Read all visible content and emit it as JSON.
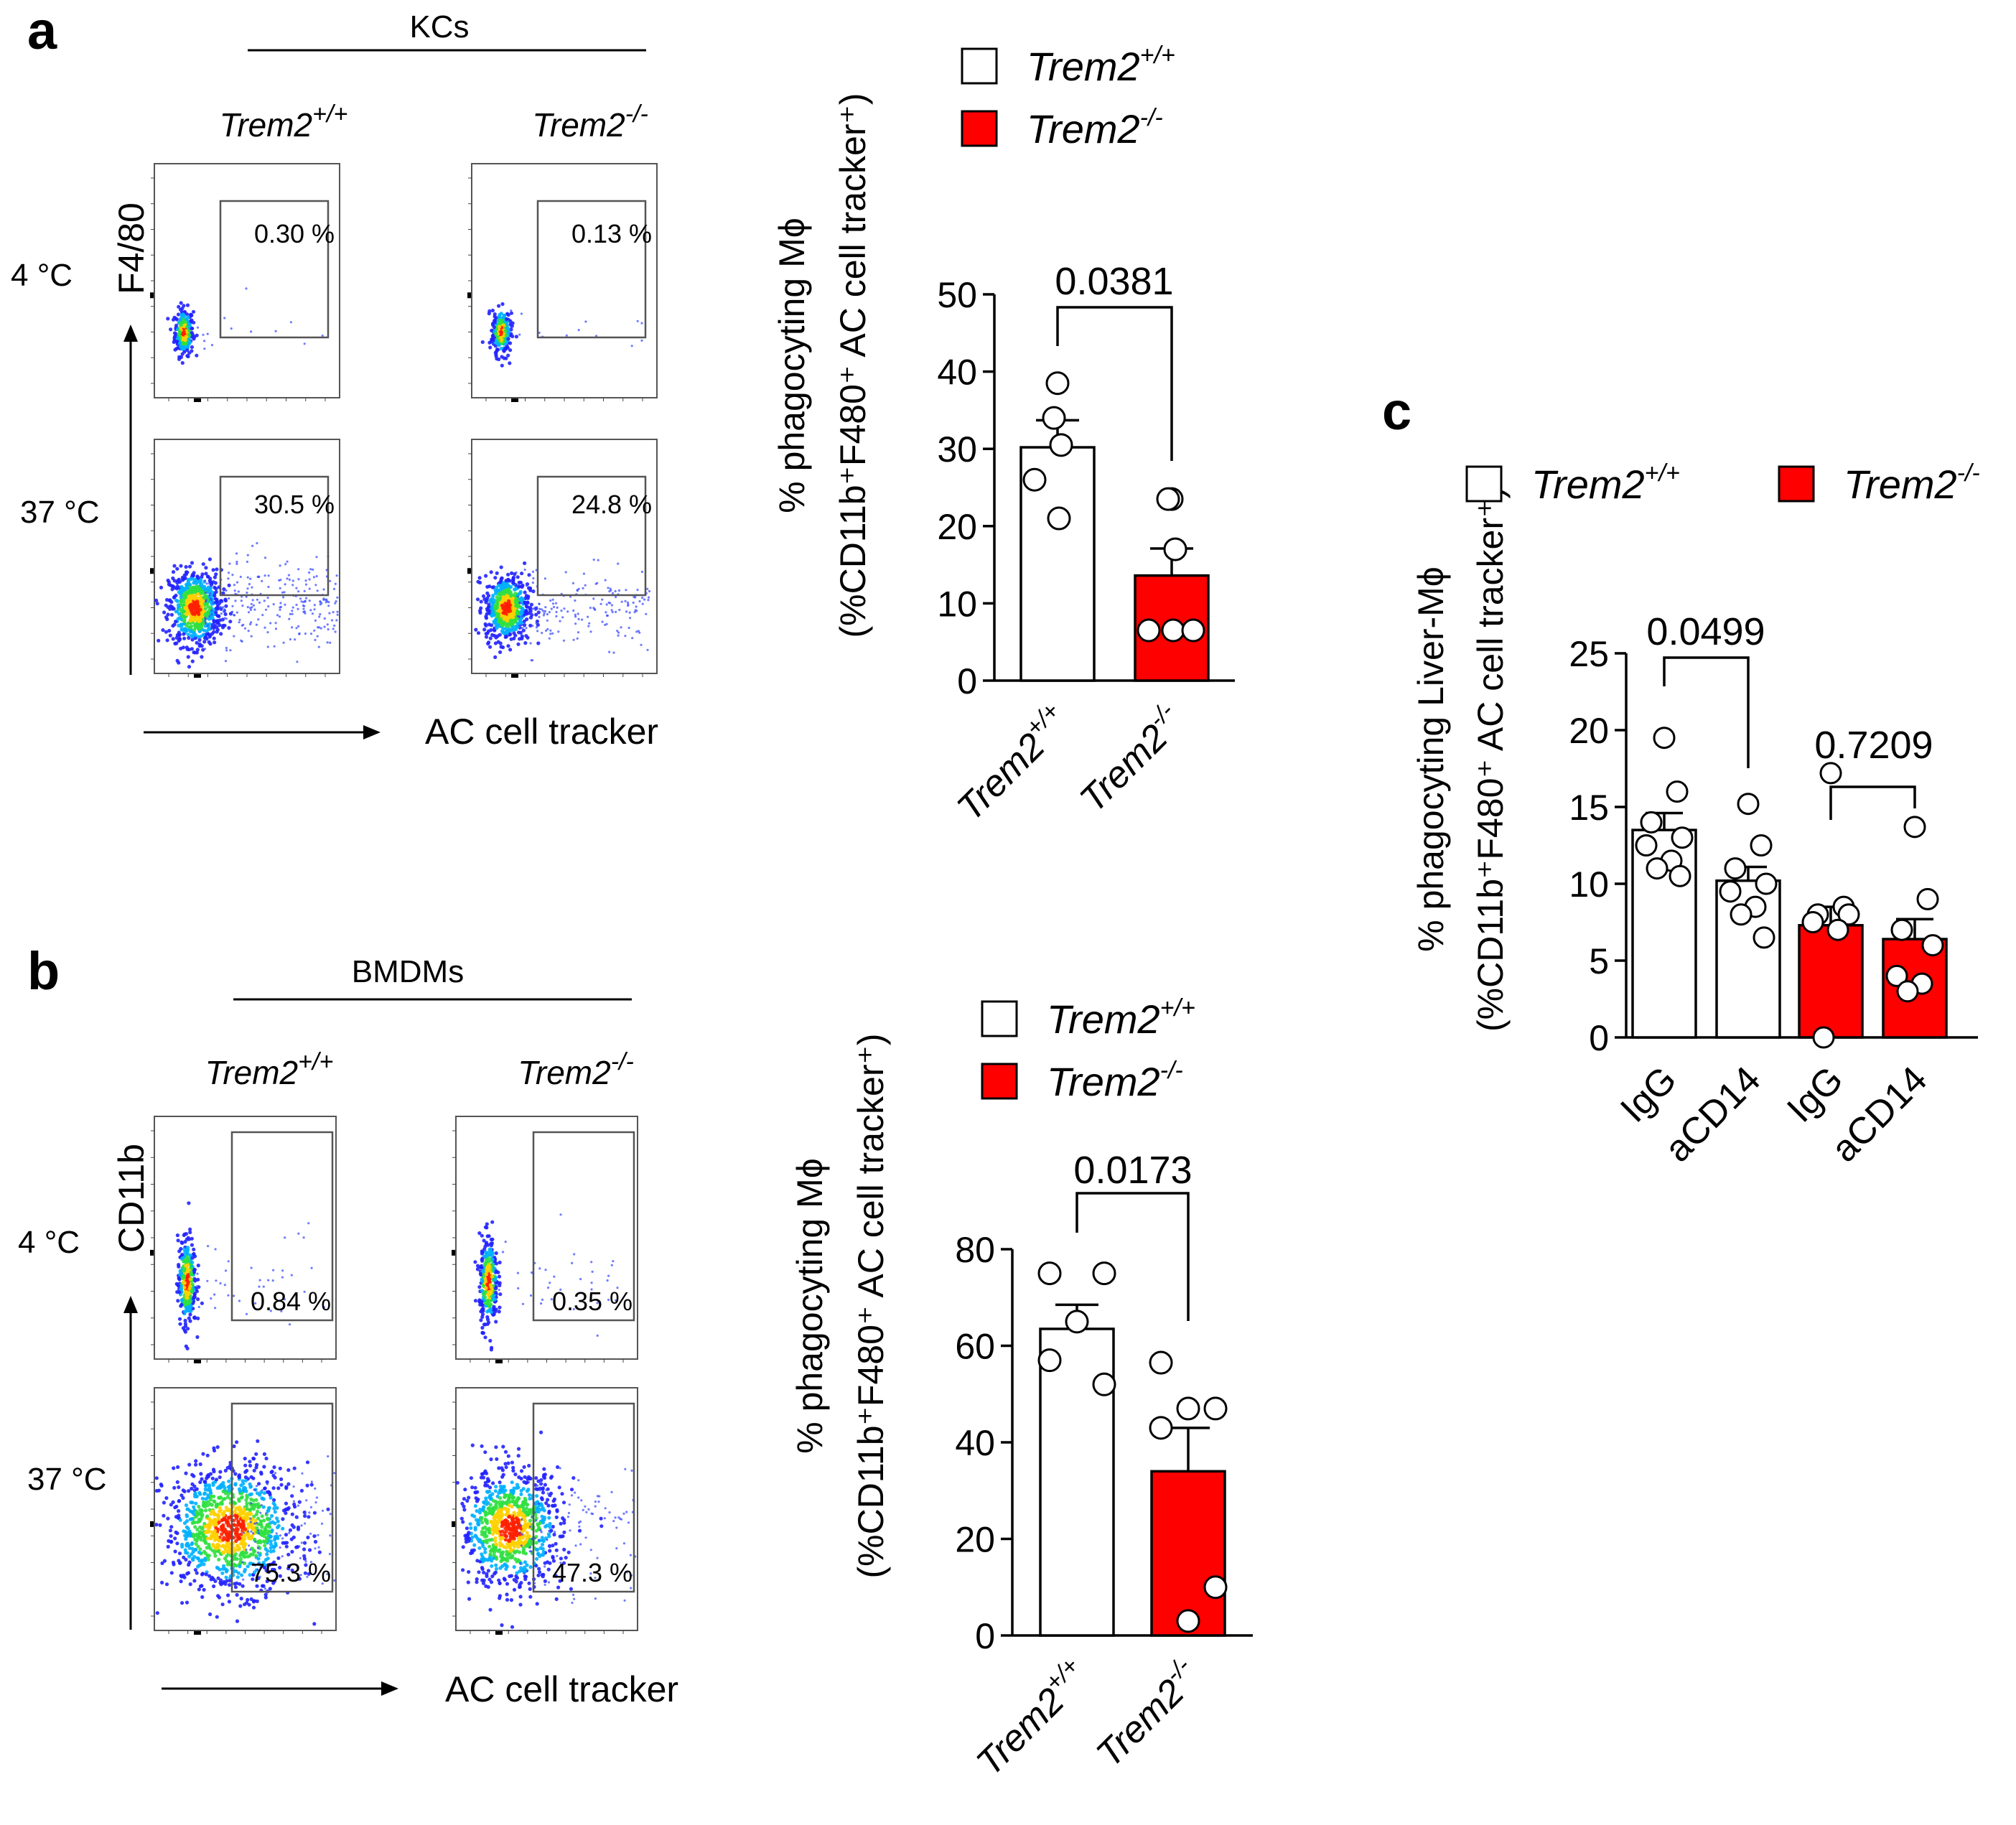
{
  "colors": {
    "wildtype": "#ffffff",
    "knockout": "#ff0000",
    "ink": "#000000",
    "flow_low": "#1a1aff",
    "flow_high": "#ff2000"
  },
  "panel_a": {
    "letter": "a",
    "header": "KCs",
    "genotype_wt": "Trem2",
    "genotype_wt_sup": "+/+",
    "genotype_ko": "Trem2",
    "genotype_ko_sup": "-/-",
    "temp_cold": "4 °C",
    "temp_warm": "37 °C",
    "y_marker": "F4/80",
    "x_marker": "AC cell tracker",
    "gates": {
      "wt_4c": "0.30 %",
      "ko_4c": "0.13 %",
      "wt_37c": "30.5 %",
      "ko_37c": "24.8 %"
    }
  },
  "panel_b": {
    "letter": "b",
    "header": "BMDMs",
    "genotype_wt": "Trem2",
    "genotype_wt_sup": "+/+",
    "genotype_ko": "Trem2",
    "genotype_ko_sup": "-/-",
    "temp_cold": "4 °C",
    "temp_warm": "37 °C",
    "y_marker": "CD11b",
    "x_marker": "AC cell tracker",
    "gates": {
      "wt_4c": "0.84 %",
      "ko_4c": "0.35 %",
      "wt_37c": "75.3 %",
      "ko_37c": "47.3 %"
    }
  },
  "panel_c": {
    "letter": "c"
  },
  "chart_data": [
    {
      "id": "a-bar",
      "type": "bar",
      "categories": [
        "Trem2+/+",
        "Trem2-/-"
      ],
      "category_base": [
        "Trem2",
        "Trem2"
      ],
      "category_sup": [
        "+/+",
        "-/-"
      ],
      "series": [
        {
          "name": "Trem2+/+",
          "mean": 30.2,
          "sem": 3.5,
          "points": [
            38.5,
            34.0,
            30.5,
            26.0,
            21.0
          ]
        },
        {
          "name": "Trem2-/-",
          "mean": 13.6,
          "sem": 3.5,
          "points": [
            23.5,
            23.5,
            17.0,
            6.5,
            6.5,
            6.5
          ]
        }
      ],
      "ylabel_line1": "% phagocyting Mϕ",
      "ylabel_line2": "(%CD11b⁺F480⁺ AC cell tracker⁺)",
      "yticks": [
        0,
        10,
        20,
        30,
        40,
        50
      ],
      "ylim": [
        0,
        50
      ],
      "pvalue": "0.0381",
      "legend": [
        {
          "label": "Trem2",
          "sup": "+/+"
        },
        {
          "label": "Trem2",
          "sup": "-/-"
        }
      ],
      "legend_position": "top-right"
    },
    {
      "id": "b-bar",
      "type": "bar",
      "categories": [
        "Trem2+/+",
        "Trem2-/-"
      ],
      "category_base": [
        "Trem2",
        "Trem2"
      ],
      "category_sup": [
        "+/+",
        "-/-"
      ],
      "series": [
        {
          "name": "Trem2+/+",
          "mean": 63.5,
          "sem": 5.0,
          "points": [
            75.0,
            75.0,
            65.0,
            57.0,
            52.0
          ]
        },
        {
          "name": "Trem2-/-",
          "mean": 34.0,
          "sem": 9.0,
          "points": [
            56.5,
            47.0,
            47.0,
            43.0,
            10.0,
            3.0
          ]
        }
      ],
      "ylabel_line1": "% phagocyting Mϕ",
      "ylabel_line2": "(%CD11b⁺F480⁺ AC cell tracker⁺)",
      "yticks": [
        0,
        20,
        40,
        60,
        80
      ],
      "ylim": [
        0,
        80
      ],
      "pvalue": "0.0173",
      "legend": [
        {
          "label": "Trem2",
          "sup": "+/+"
        },
        {
          "label": "Trem2",
          "sup": "-/-"
        }
      ],
      "legend_position": "top-right"
    },
    {
      "id": "c-bar",
      "type": "bar",
      "categories": [
        "IgG",
        "aCD14",
        "IgG",
        "aCD14"
      ],
      "series": [
        {
          "name": "Trem2+/+ IgG",
          "group": "wt",
          "mean": 13.5,
          "sem": 1.1,
          "points": [
            19.5,
            16.0,
            14.0,
            13.0,
            12.5,
            11.5,
            11.0,
            10.5
          ]
        },
        {
          "name": "Trem2+/+ aCD14",
          "group": "wt",
          "mean": 10.2,
          "sem": 0.9,
          "points": [
            15.2,
            12.5,
            11.0,
            10.0,
            9.5,
            8.5,
            8.0,
            6.5
          ]
        },
        {
          "name": "Trem2-/- IgG",
          "group": "ko",
          "mean": 7.3,
          "sem": 1.2,
          "points": [
            17.2,
            8.5,
            8.0,
            8.0,
            7.5,
            7.0,
            0.0
          ]
        },
        {
          "name": "Trem2-/- aCD14",
          "group": "ko",
          "mean": 6.4,
          "sem": 1.3,
          "points": [
            13.7,
            9.0,
            7.0,
            6.0,
            4.0,
            3.5,
            3.0
          ]
        }
      ],
      "ylabel_line1": "% phagocyting Liver-Mϕ",
      "ylabel_line2": "(%CD11b⁺F480⁺ AC cell tracker⁺)",
      "yticks": [
        0,
        5,
        10,
        15,
        20,
        25
      ],
      "ylim": [
        0,
        25
      ],
      "pvalues": [
        {
          "label": "0.0499",
          "from": 0,
          "to": 1
        },
        {
          "label": "0.7209",
          "from": 2,
          "to": 3
        }
      ],
      "legend": [
        {
          "label": "Trem2",
          "sup": "+/+"
        },
        {
          "label": "Trem2",
          "sup": "-/-"
        }
      ],
      "legend_position": "top"
    }
  ]
}
